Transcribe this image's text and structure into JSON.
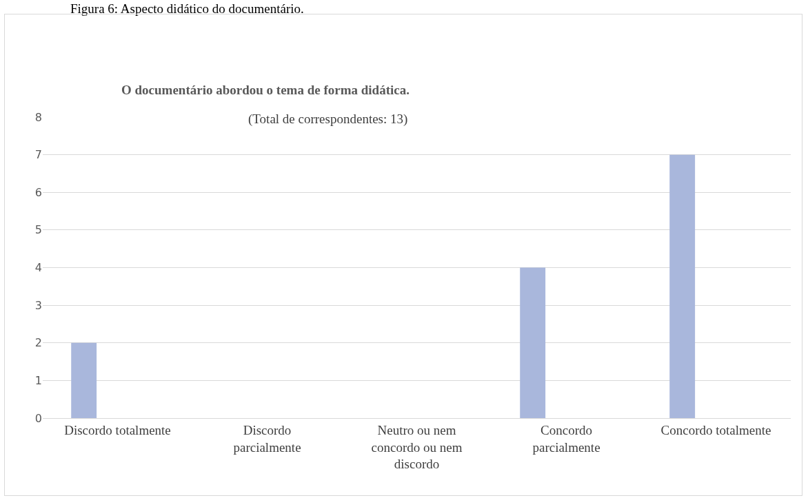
{
  "chart_data": {
    "type": "bar",
    "title": "O documentário abordou o tema de forma didática.",
    "subtitle": "(Total de correspondentes: 13)",
    "annotations": [
      "Figura 6: Aspecto didático do documentário."
    ],
    "categories": [
      "Discordo totalmente",
      "Discordo parcialmente",
      "Neutro ou nem concordo ou nem discordo",
      "Concordo parcialmente",
      "Concordo totalmente"
    ],
    "values": [
      2,
      0,
      0,
      4,
      7
    ],
    "color": "#a9b7dc",
    "ylim": [
      0,
      8
    ],
    "yticks": [
      0,
      1,
      2,
      3,
      4,
      5,
      6,
      7,
      8
    ],
    "grid": "y"
  }
}
